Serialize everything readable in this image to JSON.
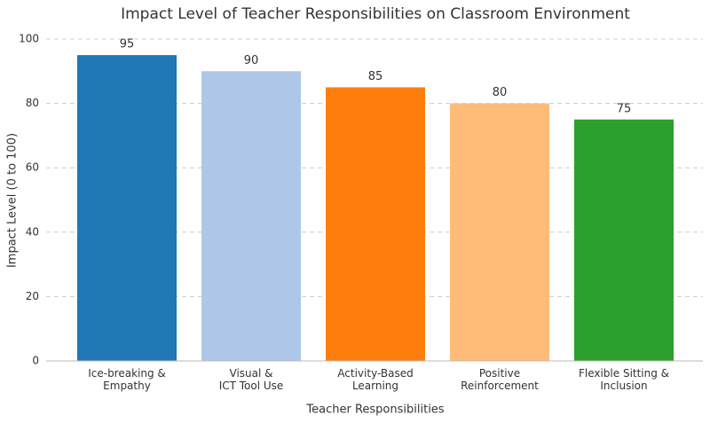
{
  "chart_data": {
    "type": "bar",
    "title": "Impact Level of Teacher Responsibilities on Classroom Environment",
    "x_label": "Teacher Responsibilities",
    "y_label": "Impact Level (0 to 100)",
    "categories": [
      "Ice-breaking &\nEmpathy",
      "Visual &\nICT Tool Use",
      "Activity-Based\nLearning",
      "Positive\nReinforcement",
      "Flexible Sitting &\nInclusion"
    ],
    "values": [
      95,
      90,
      85,
      80,
      75
    ],
    "colors": [
      "#1f77b4",
      "#aec7e8",
      "#ff7f0e",
      "#ffbb78",
      "#2ca02c"
    ],
    "ylim": [
      0,
      100
    ],
    "yticks": [
      0,
      20,
      40,
      60,
      80,
      100
    ],
    "grid": true
  }
}
